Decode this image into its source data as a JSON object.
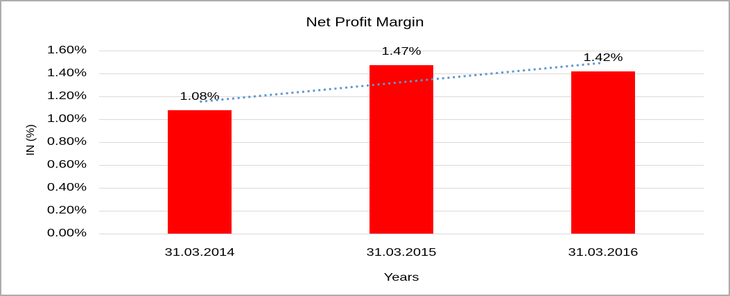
{
  "chart_data": {
    "type": "bar",
    "title": "Net Profit Margin",
    "categories": [
      "31.03.2014",
      "31.03.2015",
      "31.03.2016"
    ],
    "series": [
      {
        "name": "Net Profit Margin",
        "color": "#ff0000",
        "values": [
          1.08,
          1.47,
          1.42
        ]
      }
    ],
    "data_labels": [
      "1.08%",
      "1.47%",
      "1.42%"
    ],
    "xlabel": "Years",
    "ylabel": "IN (%)",
    "ylim": [
      0,
      1.6
    ],
    "ytick_step": 0.2,
    "ytick_labels": [
      "0.00%",
      "0.20%",
      "0.40%",
      "0.60%",
      "0.80%",
      "1.00%",
      "1.20%",
      "1.40%",
      "1.60%"
    ],
    "grid": true,
    "legend_position": "none",
    "trendline": {
      "type": "linear",
      "style": "dotted"
    },
    "colors": {
      "bar": "#ff0000",
      "gridline": "#d9d9d9",
      "trendline": "#5e97d0",
      "text": "#000000",
      "border": "#acacac",
      "background": "#ffffff"
    }
  }
}
